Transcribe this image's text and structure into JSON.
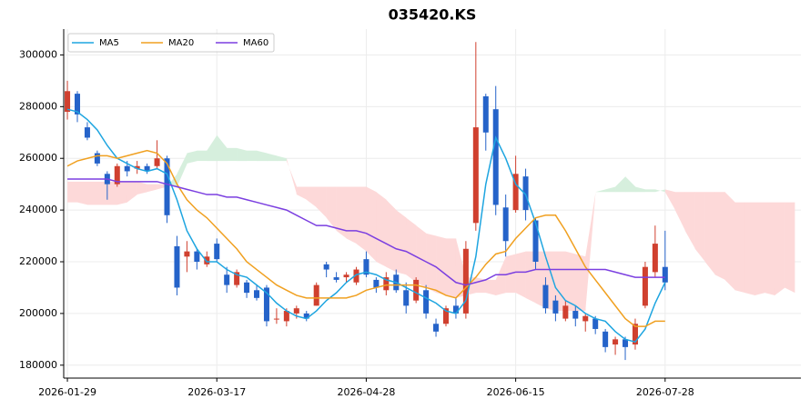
{
  "chart_data": {
    "type": "candlestick",
    "title": "035420.KS",
    "categories": [
      "2026-01-29",
      null,
      null,
      null,
      null,
      null,
      null,
      null,
      null,
      null,
      null,
      null,
      null,
      null,
      null,
      "2026-03-17",
      null,
      null,
      null,
      null,
      null,
      null,
      null,
      null,
      null,
      null,
      null,
      null,
      null,
      null,
      "2026-04-28",
      null,
      null,
      null,
      null,
      null,
      null,
      null,
      null,
      null,
      null,
      null,
      null,
      null,
      null,
      "2026-06-15",
      null,
      null,
      null,
      null,
      null,
      null,
      null,
      null,
      null,
      null,
      null,
      null,
      null,
      null,
      "2026-07-28"
    ],
    "open": [
      278000,
      285000,
      272000,
      262000,
      254000,
      250000,
      257000,
      256000,
      257000,
      257000,
      260000,
      226000,
      222000,
      224000,
      219000,
      227000,
      215000,
      211000,
      212000,
      209000,
      210000,
      198000,
      197000,
      200000,
      200000,
      203000,
      219000,
      214000,
      214000,
      212000,
      221000,
      213000,
      209000,
      215000,
      209000,
      205000,
      209000,
      196000,
      196000,
      203000,
      200000,
      235000,
      284000,
      279000,
      241000,
      240000,
      253000,
      236000,
      211000,
      205000,
      198000,
      201000,
      197000,
      198000,
      193000,
      188000,
      190000,
      188000,
      203000,
      216000,
      218000
    ],
    "high": [
      290000,
      286000,
      274000,
      263000,
      255000,
      258000,
      259000,
      259000,
      258000,
      267000,
      261000,
      230000,
      228000,
      225000,
      224000,
      229000,
      218000,
      217000,
      213000,
      211000,
      211000,
      202000,
      202000,
      203000,
      201000,
      212000,
      220000,
      216000,
      216000,
      218000,
      224000,
      214000,
      216000,
      217000,
      212000,
      214000,
      211000,
      198000,
      203000,
      206000,
      228000,
      305000,
      285000,
      288000,
      246000,
      261000,
      256000,
      237000,
      214000,
      207000,
      205000,
      203000,
      200000,
      199000,
      194000,
      191000,
      191000,
      198000,
      220000,
      234000,
      232000
    ],
    "low": [
      275000,
      274000,
      267000,
      257000,
      244000,
      249000,
      253000,
      254000,
      254000,
      256000,
      235000,
      207000,
      216000,
      217000,
      218000,
      220000,
      208000,
      210000,
      206000,
      205000,
      195000,
      196000,
      195000,
      198000,
      197000,
      203000,
      214000,
      212000,
      212000,
      211000,
      214000,
      208000,
      207000,
      208000,
      200000,
      204000,
      198000,
      191000,
      195000,
      198000,
      198000,
      232000,
      263000,
      238000,
      222000,
      239000,
      236000,
      217000,
      200000,
      197000,
      197000,
      195000,
      193000,
      192000,
      185000,
      184000,
      182000,
      186000,
      202000,
      214000,
      209000
    ],
    "close": [
      286000,
      277000,
      268000,
      258000,
      250000,
      257000,
      255000,
      257000,
      255000,
      260000,
      238000,
      210000,
      224000,
      220000,
      222000,
      221000,
      211000,
      216000,
      208000,
      206000,
      197000,
      198000,
      201000,
      202000,
      198000,
      211000,
      217000,
      213000,
      215000,
      217000,
      215000,
      210000,
      214000,
      209000,
      203000,
      213000,
      200000,
      193000,
      202000,
      200000,
      225000,
      272000,
      270000,
      242000,
      228000,
      254000,
      240000,
      220000,
      202000,
      200000,
      203000,
      198000,
      199000,
      194000,
      187000,
      190000,
      187000,
      196000,
      218000,
      227000,
      212000
    ],
    "up_color": "#d0402f",
    "down_color": "#2563c9",
    "series": [
      {
        "name": "MA5",
        "color": "#1ea5e0",
        "values": [
          279000,
          278000,
          275000,
          271000,
          265000,
          260000,
          258000,
          256000,
          255000,
          256000,
          254000,
          244000,
          232000,
          225000,
          220000,
          220000,
          217000,
          215000,
          214000,
          211000,
          208000,
          204000,
          201000,
          199000,
          198000,
          201000,
          205000,
          208000,
          212000,
          215000,
          216000,
          215000,
          213000,
          212000,
          210000,
          208000,
          206000,
          204000,
          201000,
          200000,
          205000,
          222000,
          250000,
          268000,
          260000,
          250000,
          246000,
          235000,
          222000,
          210000,
          205000,
          203000,
          200000,
          198000,
          197000,
          193000,
          190000,
          189000,
          194000,
          204000,
          212000
        ]
      },
      {
        "name": "MA20",
        "color": "#f0a020",
        "values": [
          257000,
          259000,
          260000,
          261000,
          261000,
          260000,
          261000,
          262000,
          263000,
          262000,
          258000,
          250000,
          244000,
          240000,
          237000,
          233000,
          229000,
          225000,
          220000,
          217000,
          214000,
          211000,
          209000,
          207000,
          206000,
          206000,
          206000,
          206000,
          206000,
          207000,
          209000,
          210000,
          211000,
          211000,
          211000,
          211000,
          210000,
          209000,
          207000,
          206000,
          210000,
          214000,
          219000,
          223000,
          224000,
          229000,
          233000,
          237000,
          238000,
          238000,
          232000,
          225000,
          218000,
          213000,
          208000,
          203000,
          198000,
          195000,
          195000,
          197000,
          197000
        ]
      },
      {
        "name": "MA60",
        "color": "#7b3fe0",
        "values": [
          252000,
          252000,
          252000,
          252000,
          252000,
          251000,
          251000,
          251000,
          251000,
          251000,
          250000,
          249000,
          248000,
          247000,
          246000,
          246000,
          245000,
          245000,
          244000,
          243000,
          242000,
          241000,
          240000,
          238000,
          236000,
          234000,
          234000,
          233000,
          232000,
          232000,
          231000,
          229000,
          227000,
          225000,
          224000,
          222000,
          220000,
          218000,
          215000,
          212000,
          211000,
          212000,
          213000,
          215000,
          215000,
          216000,
          216000,
          217000,
          217000,
          217000,
          217000,
          217000,
          217000,
          217000,
          217000,
          216000,
          215000,
          214000,
          214000,
          214000,
          214000
        ]
      }
    ],
    "cloud": {
      "up_color": "#d6efdd",
      "down_color": "#fdd9d9",
      "span_a": [
        243000,
        243000,
        242000,
        242000,
        242000,
        242000,
        243000,
        246000,
        247000,
        248000,
        249000,
        254000,
        262000,
        263000,
        263000,
        269000,
        264000,
        264000,
        263000,
        263000,
        262000,
        261000,
        260000,
        246000,
        244000,
        241000,
        237000,
        232000,
        229000,
        227000,
        224000,
        220000,
        218000,
        216000,
        215000,
        212000,
        210000,
        208000,
        207000,
        206000,
        207000,
        208000,
        208000,
        207000,
        208000,
        208000,
        206000,
        204000,
        202000,
        201000,
        201000,
        201000,
        201000,
        247000,
        248000,
        249000,
        253000,
        249000,
        248000,
        248000,
        247000,
        240000,
        232000,
        225000,
        220000,
        215000,
        213000,
        209000,
        208000,
        207000,
        208000,
        207000,
        210000,
        208000
      ],
      "span_b": [
        251000,
        251000,
        251000,
        251000,
        251000,
        251000,
        251000,
        251000,
        250000,
        250000,
        250000,
        249000,
        258000,
        259000,
        259000,
        259000,
        259000,
        259000,
        259000,
        259000,
        259000,
        259000,
        259000,
        249000,
        249000,
        249000,
        249000,
        249000,
        249000,
        249000,
        249000,
        247000,
        244000,
        240000,
        237000,
        234000,
        231000,
        230000,
        229000,
        229000,
        214000,
        214000,
        213000,
        213000,
        222000,
        223000,
        224000,
        224000,
        224000,
        224000,
        224000,
        223000,
        222000,
        247000,
        247000,
        247000,
        247000,
        247000,
        247000,
        247000,
        248000,
        247000,
        247000,
        247000,
        247000,
        247000,
        247000,
        243000,
        243000,
        243000,
        243000,
        243000,
        243000,
        243000
      ]
    },
    "ylim": [
      175000,
      310000
    ],
    "yticks": [
      180000,
      200000,
      220000,
      240000,
      260000,
      280000,
      300000
    ],
    "grid": true,
    "legend": "upper left"
  }
}
